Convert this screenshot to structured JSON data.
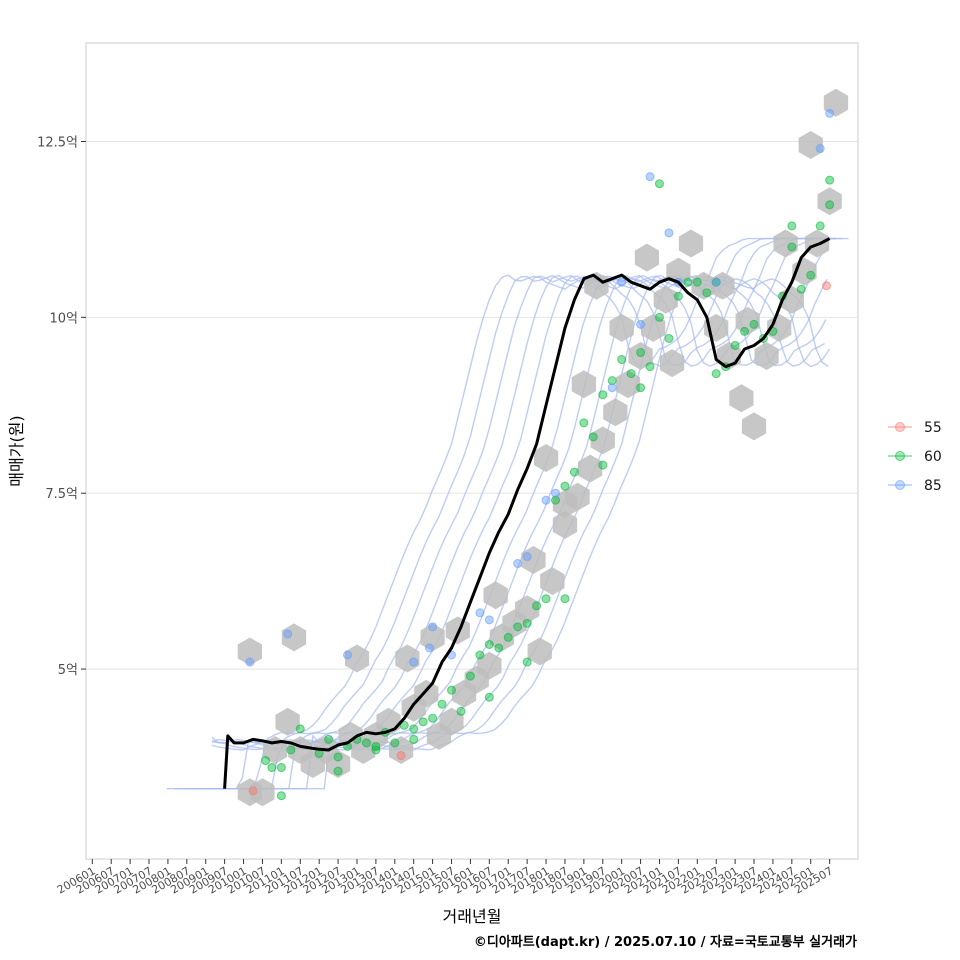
{
  "chart_data": {
    "type": "scatter",
    "xlabel": "거래년월",
    "ylabel": "매매가(원)",
    "caption": "©디아파트(dapt.kr) / 2025.07.10 / 자료=국토교통부 실거래가",
    "x_ticks": [
      "200601",
      "200607",
      "200701",
      "200707",
      "200801",
      "200807",
      "200901",
      "200907",
      "201001",
      "201007",
      "201101",
      "201107",
      "201201",
      "201207",
      "201301",
      "201307",
      "201401",
      "201407",
      "201501",
      "201507",
      "201601",
      "201607",
      "201701",
      "201707",
      "201801",
      "201807",
      "201901",
      "201907",
      "202001",
      "202007",
      "202101",
      "202107",
      "202201",
      "202207",
      "202301",
      "202307",
      "202401",
      "202407",
      "202501",
      "202507"
    ],
    "y_ticks": [
      {
        "value": 5.0,
        "label": "5억"
      },
      {
        "value": 7.5,
        "label": "7.5억"
      },
      {
        "value": 10.0,
        "label": "10억"
      },
      {
        "value": 12.5,
        "label": "12.5억"
      }
    ],
    "xlim": [
      "2005-11",
      "2026-04"
    ],
    "ylim": [
      2.3,
      13.9
    ],
    "y_unit": "억",
    "grid": true,
    "legend_position": "right",
    "legend": [
      {
        "name": "55",
        "color": "#F8766D"
      },
      {
        "name": "60",
        "color": "#00BA38"
      },
      {
        "name": "85",
        "color": "#619CFF"
      }
    ],
    "trend_line": {
      "color": "#000000",
      "x": [
        "2009-07",
        "2009-08",
        "2009-10",
        "2010-01",
        "2010-04",
        "2010-07",
        "2010-10",
        "2011-01",
        "2011-04",
        "2011-07",
        "2011-10",
        "2012-01",
        "2012-04",
        "2012-07",
        "2012-10",
        "2013-01",
        "2013-04",
        "2013-07",
        "2013-10",
        "2014-01",
        "2014-04",
        "2014-07",
        "2014-10",
        "2015-01",
        "2015-04",
        "2015-07",
        "2015-10",
        "2016-01",
        "2016-04",
        "2016-07",
        "2016-10",
        "2017-01",
        "2017-04",
        "2017-07",
        "2017-10",
        "2018-01",
        "2018-04",
        "2018-07",
        "2018-10",
        "2019-01",
        "2019-04",
        "2019-07",
        "2019-10",
        "2020-01",
        "2020-04",
        "2020-07",
        "2020-10",
        "2021-01",
        "2021-04",
        "2021-07",
        "2021-10",
        "2022-01",
        "2022-04",
        "2022-07",
        "2022-10",
        "2023-01",
        "2023-04",
        "2023-07",
        "2023-10",
        "2024-01",
        "2024-04",
        "2024-07",
        "2024-10",
        "2025-01",
        "2025-04",
        "2025-07"
      ],
      "y": [
        3.3,
        4.05,
        3.95,
        3.95,
        4.0,
        3.98,
        3.95,
        3.97,
        3.95,
        3.9,
        3.88,
        3.86,
        3.85,
        3.92,
        3.95,
        4.05,
        4.1,
        4.08,
        4.1,
        4.15,
        4.3,
        4.5,
        4.65,
        4.8,
        5.1,
        5.3,
        5.6,
        5.95,
        6.3,
        6.65,
        6.95,
        7.2,
        7.55,
        7.85,
        8.2,
        8.75,
        9.3,
        9.85,
        10.25,
        10.55,
        10.6,
        10.5,
        10.55,
        10.6,
        10.5,
        10.45,
        10.4,
        10.5,
        10.55,
        10.5,
        10.35,
        10.25,
        10.0,
        9.4,
        9.3,
        9.35,
        9.55,
        9.6,
        9.7,
        9.9,
        10.25,
        10.5,
        10.85,
        11.0,
        11.05,
        11.12
      ]
    },
    "series": [
      {
        "name": "55",
        "x": [
          "2010-04",
          "2014-03",
          "2025-06"
        ],
        "y": [
          3.27,
          3.77,
          10.45
        ]
      },
      {
        "name": "60",
        "x": [
          "2010-08",
          "2010-10",
          "2011-01",
          "2011-04",
          "2011-07",
          "2012-01",
          "2012-04",
          "2012-07",
          "2012-10",
          "2013-01",
          "2013-04",
          "2013-07",
          "2013-10",
          "2014-01",
          "2014-04",
          "2014-07",
          "2014-10",
          "2015-01",
          "2015-04",
          "2015-07",
          "2015-10",
          "2016-01",
          "2016-04",
          "2016-07",
          "2016-10",
          "2017-01",
          "2017-04",
          "2017-07",
          "2017-10",
          "2018-01",
          "2018-04",
          "2018-07",
          "2018-10",
          "2019-01",
          "2019-04",
          "2019-07",
          "2019-10",
          "2020-01",
          "2020-04",
          "2020-07",
          "2020-10",
          "2021-01",
          "2021-04",
          "2021-07",
          "2021-10",
          "2022-01",
          "2022-04",
          "2022-07",
          "2022-10",
          "2023-01",
          "2023-04",
          "2023-07",
          "2023-10",
          "2024-01",
          "2024-04",
          "2024-07",
          "2024-10",
          "2025-01",
          "2025-04",
          "2025-07",
          "2011-01",
          "2012-07",
          "2013-07",
          "2014-07",
          "2016-07",
          "2017-07",
          "2018-07",
          "2019-07",
          "2020-07",
          "2021-01",
          "2022-07",
          "2024-07",
          "2025-07"
        ],
        "y": [
          3.7,
          3.6,
          3.6,
          3.85,
          4.15,
          3.8,
          4.0,
          3.75,
          3.9,
          4.0,
          3.95,
          3.9,
          4.1,
          3.95,
          4.2,
          4.0,
          4.25,
          4.3,
          4.5,
          4.7,
          4.4,
          4.9,
          5.2,
          5.35,
          5.3,
          5.45,
          5.6,
          5.65,
          5.9,
          6.0,
          7.4,
          7.6,
          7.8,
          8.5,
          8.3,
          8.9,
          9.1,
          9.4,
          9.2,
          9.5,
          9.3,
          10.0,
          9.7,
          10.3,
          10.5,
          10.5,
          10.35,
          9.2,
          9.3,
          9.6,
          9.8,
          9.9,
          9.7,
          9.8,
          10.3,
          11.0,
          10.4,
          10.6,
          11.3,
          11.6,
          3.2,
          3.55,
          3.85,
          4.15,
          4.6,
          5.1,
          6.0,
          7.9,
          9.0,
          11.9,
          10.5,
          11.3,
          11.95
        ]
      },
      {
        "name": "85",
        "x": [
          "2010-03",
          "2011-03",
          "2012-10",
          "2014-07",
          "2014-12",
          "2015-01",
          "2015-07",
          "2016-04",
          "2016-07",
          "2017-04",
          "2017-07",
          "2018-01",
          "2018-04",
          "2019-10",
          "2020-01",
          "2020-07",
          "2021-04",
          "2021-07",
          "2022-07",
          "2025-04",
          "2025-07",
          "2020-10"
        ],
        "y": [
          5.1,
          5.5,
          5.2,
          5.1,
          5.3,
          5.6,
          5.2,
          5.8,
          5.7,
          6.5,
          6.6,
          7.4,
          7.5,
          9.0,
          10.5,
          9.9,
          11.2,
          10.5,
          10.5,
          12.4,
          12.9,
          12.0
        ]
      }
    ],
    "hex_bins": {
      "x": [
        "2010-03",
        "2010-07",
        "2010-11",
        "2011-03",
        "2011-07",
        "2011-11",
        "2012-03",
        "2012-07",
        "2012-11",
        "2013-03",
        "2013-07",
        "2013-11",
        "2014-03",
        "2014-07",
        "2014-11",
        "2015-03",
        "2015-07",
        "2015-11",
        "2016-03",
        "2016-07",
        "2016-11",
        "2017-03",
        "2017-07",
        "2017-11",
        "2018-03",
        "2018-07",
        "2018-11",
        "2019-03",
        "2019-07",
        "2019-11",
        "2020-03",
        "2020-07",
        "2020-11",
        "2021-03",
        "2021-07",
        "2021-11",
        "2022-03",
        "2022-07",
        "2022-11",
        "2023-03",
        "2023-07",
        "2023-11",
        "2024-03",
        "2024-07",
        "2024-11",
        "2025-03",
        "2025-07",
        "2010-03",
        "2011-05",
        "2013-01",
        "2014-05",
        "2015-01",
        "2015-09",
        "2016-09",
        "2017-09",
        "2018-01",
        "2018-07",
        "2019-01",
        "2019-05",
        "2020-01",
        "2020-09",
        "2021-05",
        "2022-09",
        "2023-05",
        "2024-05",
        "2025-01",
        "2025-09"
      ],
      "y": [
        3.25,
        3.25,
        3.85,
        4.25,
        3.85,
        3.65,
        3.85,
        3.65,
        4.05,
        3.85,
        4.05,
        4.25,
        3.85,
        4.45,
        4.65,
        4.05,
        4.25,
        4.65,
        4.85,
        5.05,
        5.45,
        5.65,
        5.85,
        5.25,
        6.25,
        7.05,
        7.45,
        7.85,
        8.25,
        8.65,
        9.05,
        9.45,
        9.85,
        10.25,
        10.65,
        11.05,
        10.45,
        9.85,
        9.45,
        8.85,
        8.45,
        9.45,
        9.85,
        10.25,
        10.65,
        11.05,
        11.65,
        5.25,
        5.45,
        5.15,
        5.15,
        5.45,
        5.55,
        6.05,
        6.55,
        8.0,
        7.35,
        9.05,
        10.45,
        9.85,
        10.85,
        9.35,
        10.45,
        9.95,
        11.05,
        12.45,
        13.05
      ],
      "color": "#BDBDBD"
    }
  }
}
